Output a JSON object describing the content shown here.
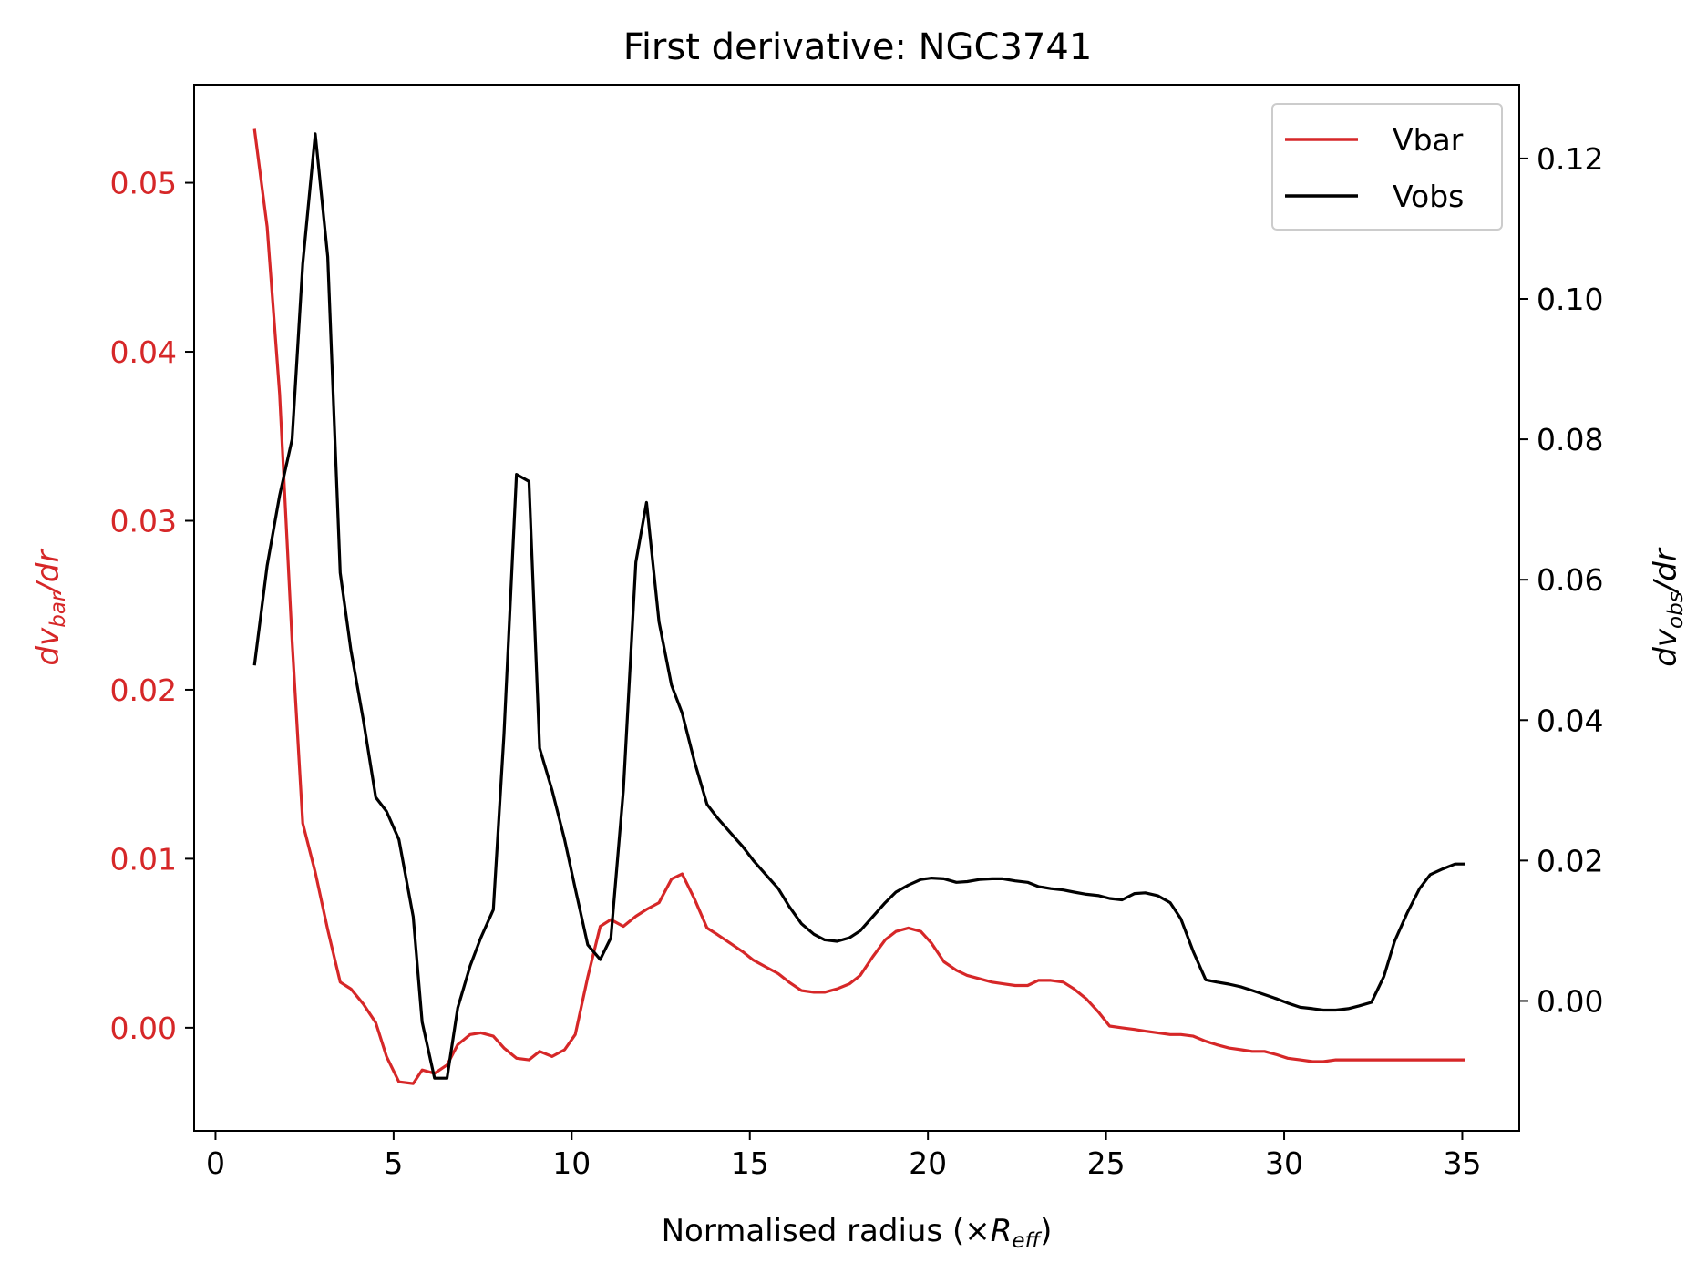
{
  "chart_data": {
    "type": "line",
    "title": "First derivative: NGC3741",
    "xlabel": {
      "main": "Normalised radius (×",
      "var": "R",
      "sub": "eff",
      "close": ")"
    },
    "ylabel_left": {
      "var": "dv",
      "sub": "bar",
      "tail": "/dr"
    },
    "ylabel_right": {
      "var": "dv",
      "sub": "obs",
      "tail": "/dr"
    },
    "xlim": [
      -0.6,
      36.6
    ],
    "ylim_left": [
      -0.0061,
      0.0558
    ],
    "ylim_right": [
      -0.0185,
      0.1305
    ],
    "xticks": [
      0,
      5,
      10,
      15,
      20,
      25,
      30,
      35
    ],
    "xtick_labels": [
      "0",
      "5",
      "10",
      "15",
      "20",
      "25",
      "30",
      "35"
    ],
    "yticks_left": [
      0.0,
      0.01,
      0.02,
      0.03,
      0.04,
      0.05
    ],
    "ytick_labels_left": [
      "0.00",
      "0.01",
      "0.02",
      "0.03",
      "0.04",
      "0.05"
    ],
    "yticks_right": [
      0.0,
      0.02,
      0.04,
      0.06,
      0.08,
      0.1,
      0.12
    ],
    "ytick_labels_right": [
      "0.00",
      "0.02",
      "0.04",
      "0.06",
      "0.08",
      "0.10",
      "0.12"
    ],
    "grid": false,
    "legend_position": "upper right",
    "colors": {
      "vbar": "#d62728",
      "vobs": "#000000",
      "left_axis": "#d62728",
      "right_axis": "#000000"
    },
    "series": [
      {
        "name": "Vbar",
        "axis": "left",
        "x": [
          1.1,
          1.45,
          1.8,
          2.15,
          2.45,
          2.8,
          3.15,
          3.5,
          3.8,
          4.15,
          4.5,
          4.8,
          5.15,
          5.55,
          5.8,
          6.15,
          6.5,
          6.8,
          7.15,
          7.45,
          7.8,
          8.1,
          8.45,
          8.8,
          9.1,
          9.45,
          9.8,
          10.1,
          10.45,
          10.8,
          11.1,
          11.45,
          11.8,
          12.1,
          12.45,
          12.8,
          13.1,
          13.45,
          13.8,
          14.1,
          14.45,
          14.8,
          15.1,
          15.45,
          15.8,
          16.1,
          16.45,
          16.8,
          17.1,
          17.45,
          17.8,
          18.1,
          18.45,
          18.8,
          19.1,
          19.45,
          19.8,
          20.1,
          20.45,
          20.8,
          21.1,
          21.45,
          21.8,
          22.1,
          22.45,
          22.8,
          23.1,
          23.45,
          23.8,
          24.1,
          24.45,
          24.8,
          25.1,
          25.45,
          25.8,
          26.1,
          26.45,
          26.8,
          27.1,
          27.45,
          27.8,
          28.1,
          28.45,
          28.8,
          29.1,
          29.45,
          29.8,
          30.1,
          30.45,
          30.8,
          31.1,
          31.45,
          31.8,
          32.1,
          32.45,
          32.8,
          33.1,
          33.45,
          33.8,
          34.1,
          34.45,
          34.8,
          35.05
        ],
        "y": [
          0.0531,
          0.0474,
          0.0375,
          0.0229,
          0.0121,
          0.0092,
          0.0058,
          0.0027,
          0.0023,
          0.0014,
          0.0003,
          -0.0017,
          -0.0032,
          -0.0033,
          -0.0025,
          -0.0027,
          -0.0022,
          -0.001,
          -0.0004,
          -0.0003,
          -0.0005,
          -0.0012,
          -0.0018,
          -0.0019,
          -0.0014,
          -0.0017,
          -0.0013,
          -0.0004,
          0.003,
          0.006,
          0.0064,
          0.006,
          0.0066,
          0.007,
          0.0074,
          0.0088,
          0.0091,
          0.0076,
          0.0059,
          0.0055,
          0.005,
          0.0045,
          0.004,
          0.0036,
          0.0032,
          0.0027,
          0.0022,
          0.0021,
          0.0021,
          0.0023,
          0.0026,
          0.0031,
          0.0042,
          0.0052,
          0.0057,
          0.0059,
          0.0057,
          0.005,
          0.0039,
          0.0034,
          0.0031,
          0.0029,
          0.0027,
          0.0026,
          0.0025,
          0.0025,
          0.0028,
          0.0028,
          0.0027,
          0.0023,
          0.0017,
          0.0009,
          0.0001,
          0.0,
          -0.0001,
          -0.0002,
          -0.0003,
          -0.0004,
          -0.0004,
          -0.0005,
          -0.0008,
          -0.001,
          -0.0012,
          -0.0013,
          -0.0014,
          -0.0014,
          -0.0016,
          -0.0018,
          -0.0019,
          -0.002,
          -0.002,
          -0.0019,
          -0.0019,
          -0.0019,
          -0.0019,
          -0.0019,
          -0.0019,
          -0.0019,
          -0.0019,
          -0.0019,
          -0.0019,
          -0.0019,
          -0.0019
        ]
      },
      {
        "name": "Vobs",
        "axis": "right",
        "x": [
          1.1,
          1.45,
          1.8,
          2.15,
          2.45,
          2.8,
          3.15,
          3.5,
          3.8,
          4.15,
          4.5,
          4.8,
          5.15,
          5.55,
          5.8,
          6.15,
          6.5,
          6.8,
          7.15,
          7.45,
          7.8,
          8.1,
          8.45,
          8.8,
          9.1,
          9.45,
          9.8,
          10.1,
          10.45,
          10.8,
          11.1,
          11.45,
          11.8,
          12.1,
          12.45,
          12.8,
          13.1,
          13.45,
          13.8,
          14.1,
          14.45,
          14.8,
          15.1,
          15.45,
          15.8,
          16.1,
          16.45,
          16.8,
          17.1,
          17.45,
          17.8,
          18.1,
          18.45,
          18.8,
          19.1,
          19.45,
          19.8,
          20.1,
          20.45,
          20.8,
          21.1,
          21.45,
          21.8,
          22.1,
          22.45,
          22.8,
          23.1,
          23.45,
          23.8,
          24.1,
          24.45,
          24.8,
          25.1,
          25.45,
          25.8,
          26.1,
          26.45,
          26.8,
          27.1,
          27.45,
          27.8,
          28.1,
          28.45,
          28.8,
          29.1,
          29.45,
          29.8,
          30.1,
          30.45,
          30.8,
          31.1,
          31.45,
          31.8,
          32.1,
          32.45,
          32.8,
          33.1,
          33.45,
          33.8,
          34.1,
          34.45,
          34.8,
          35.05
        ],
        "y": [
          0.048,
          0.062,
          0.072,
          0.08,
          0.105,
          0.1235,
          0.106,
          0.061,
          0.05,
          0.04,
          0.029,
          0.027,
          0.023,
          0.012,
          -0.003,
          -0.011,
          -0.011,
          -0.001,
          0.005,
          0.009,
          0.013,
          0.038,
          0.075,
          0.074,
          0.036,
          0.03,
          0.023,
          0.016,
          0.008,
          0.0059,
          0.009,
          0.03,
          0.0625,
          0.071,
          0.054,
          0.045,
          0.041,
          0.034,
          0.028,
          0.026,
          0.024,
          0.022,
          0.02,
          0.018,
          0.016,
          0.0135,
          0.011,
          0.0095,
          0.0087,
          0.0085,
          0.009,
          0.01,
          0.012,
          0.014,
          0.0155,
          0.0165,
          0.0173,
          0.0175,
          0.0174,
          0.0169,
          0.017,
          0.0173,
          0.0174,
          0.0174,
          0.0171,
          0.0169,
          0.0163,
          0.016,
          0.0158,
          0.0155,
          0.0152,
          0.015,
          0.0146,
          0.0144,
          0.0153,
          0.0154,
          0.015,
          0.014,
          0.0117,
          0.007,
          0.003,
          0.0027,
          0.0024,
          0.002,
          0.0015,
          0.0009,
          0.0003,
          -0.0003,
          -0.0009,
          -0.0011,
          -0.0013,
          -0.0013,
          -0.0011,
          -0.0007,
          -0.0002,
          0.0035,
          0.0085,
          0.0125,
          0.016,
          0.018,
          0.0188,
          0.0195,
          0.0195
        ]
      }
    ]
  }
}
